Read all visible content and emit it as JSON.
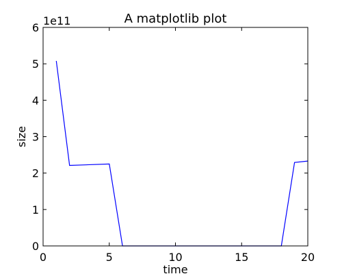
{
  "chart_data": {
    "type": "line",
    "title": "A matplotlib plot",
    "xlabel": "time",
    "ylabel": "size",
    "y_offset_label": "1e11",
    "xlim": [
      0,
      20
    ],
    "ylim": [
      0,
      6
    ],
    "x_ticks": [
      0,
      5,
      10,
      15,
      20
    ],
    "y_ticks": [
      0,
      1,
      2,
      3,
      4,
      5,
      6
    ],
    "grid": false,
    "series": [
      {
        "color": "#0000ff",
        "x": [
          1,
          2,
          5,
          6,
          7,
          8,
          9,
          10,
          11,
          12,
          13,
          14,
          15,
          16,
          17,
          18,
          19,
          20
        ],
        "y": [
          5.08,
          2.21,
          2.25,
          0,
          0,
          0,
          0,
          0,
          0,
          0,
          0,
          0,
          0,
          0,
          0,
          0,
          2.29,
          2.33
        ]
      }
    ]
  }
}
